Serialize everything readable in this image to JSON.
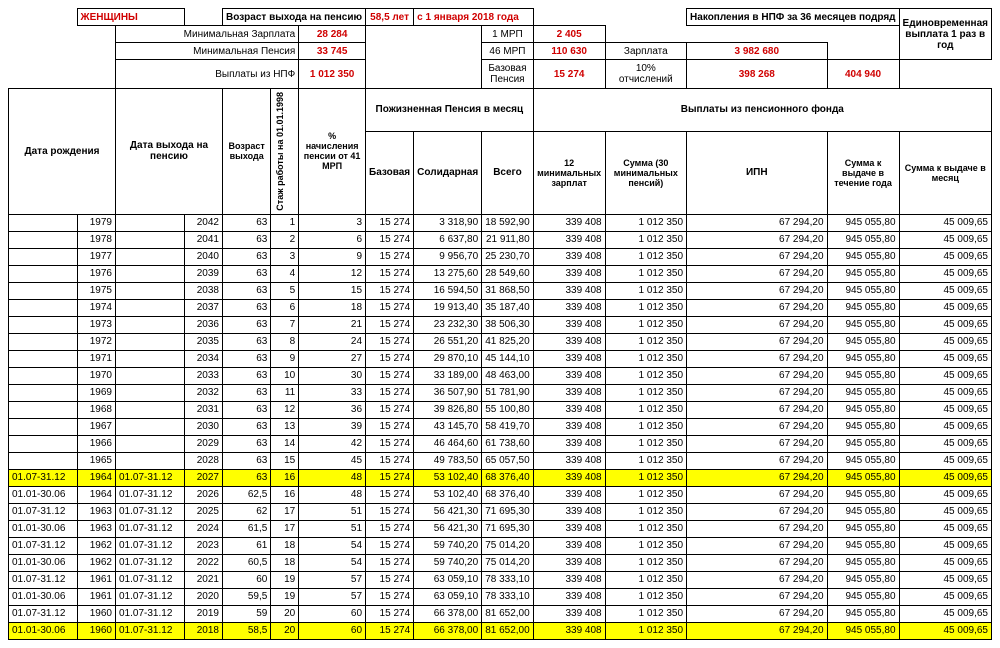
{
  "hdr": {
    "women": "ЖЕНЩИНЫ",
    "ageLbl": "Возраст выхода на пенсию",
    "age": "58,5  лет",
    "from": "с 1 января 2018 года",
    "npfLbl": "Накопления в НПФ за 36 месяцев подряд",
    "lumpLbl": "Единовременная выплата 1 раз в год",
    "minSalLbl": "Минимальная  Зарплата",
    "minSal": "28 284",
    "minPenLbl": "Минимальная  Пенсия",
    "minPen": "33 745",
    "mrp1Lbl": "1 МРП",
    "mrp1": "2 405",
    "mrp46Lbl": "46 МРП",
    "mrp46": "110 630",
    "salLbl": "Зарплата",
    "sal": "3 982 680",
    "npfPayLbl": "Выплаты из НПФ",
    "npfPay": "1 012 350",
    "basePenLbl": "Базовая Пенсия",
    "basePen": "15 274",
    "dedLbl": "10% отчислений",
    "ded": "398 268",
    "lump": "404 940"
  },
  "cols": {
    "dob": "Дата рождения",
    "ret": "Дата выхода на пенсию",
    "retAge": "Возраст выхода",
    "stazh": "Стаж работы на 01.01.1998",
    "pct": "% начисления пенсии от 41 МРП",
    "life": "Пожизненная Пенсия в месяц",
    "fund": "Выплаты из пенсионного фонда",
    "base": "Базовая",
    "sol": "Солидарная",
    "total": "Всего",
    "min12": "12 минимальных зарплат",
    "sum30": "Сумма (30 минимальных пенсий)",
    "ipn": "ИПН",
    "yr": "Сумма к выдаче в течение года",
    "mo": "Сумма к выдаче в месяц"
  },
  "rows": [
    {
      "p": "",
      "y": "1979",
      "rp": "",
      "ry": "2042",
      "a": "63",
      "s": "1",
      "pc": "3",
      "b": "15 274",
      "so": "3 318,90",
      "t": "18 592,90",
      "m": "339 408",
      "su": "1 012 350",
      "i": "67 294,20",
      "yr": "945 055,80",
      "mo": "45 009,65"
    },
    {
      "p": "",
      "y": "1978",
      "rp": "",
      "ry": "2041",
      "a": "63",
      "s": "2",
      "pc": "6",
      "b": "15 274",
      "so": "6 637,80",
      "t": "21 911,80",
      "m": "339 408",
      "su": "1 012 350",
      "i": "67 294,20",
      "yr": "945 055,80",
      "mo": "45 009,65"
    },
    {
      "p": "",
      "y": "1977",
      "rp": "",
      "ry": "2040",
      "a": "63",
      "s": "3",
      "pc": "9",
      "b": "15 274",
      "so": "9 956,70",
      "t": "25 230,70",
      "m": "339 408",
      "su": "1 012 350",
      "i": "67 294,20",
      "yr": "945 055,80",
      "mo": "45 009,65"
    },
    {
      "p": "",
      "y": "1976",
      "rp": "",
      "ry": "2039",
      "a": "63",
      "s": "4",
      "pc": "12",
      "b": "15 274",
      "so": "13 275,60",
      "t": "28 549,60",
      "m": "339 408",
      "su": "1 012 350",
      "i": "67 294,20",
      "yr": "945 055,80",
      "mo": "45 009,65"
    },
    {
      "p": "",
      "y": "1975",
      "rp": "",
      "ry": "2038",
      "a": "63",
      "s": "5",
      "pc": "15",
      "b": "15 274",
      "so": "16 594,50",
      "t": "31 868,50",
      "m": "339 408",
      "su": "1 012 350",
      "i": "67 294,20",
      "yr": "945 055,80",
      "mo": "45 009,65"
    },
    {
      "p": "",
      "y": "1974",
      "rp": "",
      "ry": "2037",
      "a": "63",
      "s": "6",
      "pc": "18",
      "b": "15 274",
      "so": "19 913,40",
      "t": "35 187,40",
      "m": "339 408",
      "su": "1 012 350",
      "i": "67 294,20",
      "yr": "945 055,80",
      "mo": "45 009,65"
    },
    {
      "p": "",
      "y": "1973",
      "rp": "",
      "ry": "2036",
      "a": "63",
      "s": "7",
      "pc": "21",
      "b": "15 274",
      "so": "23 232,30",
      "t": "38 506,30",
      "m": "339 408",
      "su": "1 012 350",
      "i": "67 294,20",
      "yr": "945 055,80",
      "mo": "45 009,65"
    },
    {
      "p": "",
      "y": "1972",
      "rp": "",
      "ry": "2035",
      "a": "63",
      "s": "8",
      "pc": "24",
      "b": "15 274",
      "so": "26 551,20",
      "t": "41 825,20",
      "m": "339 408",
      "su": "1 012 350",
      "i": "67 294,20",
      "yr": "945 055,80",
      "mo": "45 009,65"
    },
    {
      "p": "",
      "y": "1971",
      "rp": "",
      "ry": "2034",
      "a": "63",
      "s": "9",
      "pc": "27",
      "b": "15 274",
      "so": "29 870,10",
      "t": "45 144,10",
      "m": "339 408",
      "su": "1 012 350",
      "i": "67 294,20",
      "yr": "945 055,80",
      "mo": "45 009,65"
    },
    {
      "p": "",
      "y": "1970",
      "rp": "",
      "ry": "2033",
      "a": "63",
      "s": "10",
      "pc": "30",
      "b": "15 274",
      "so": "33 189,00",
      "t": "48 463,00",
      "m": "339 408",
      "su": "1 012 350",
      "i": "67 294,20",
      "yr": "945 055,80",
      "mo": "45 009,65"
    },
    {
      "p": "",
      "y": "1969",
      "rp": "",
      "ry": "2032",
      "a": "63",
      "s": "11",
      "pc": "33",
      "b": "15 274",
      "so": "36 507,90",
      "t": "51 781,90",
      "m": "339 408",
      "su": "1 012 350",
      "i": "67 294,20",
      "yr": "945 055,80",
      "mo": "45 009,65"
    },
    {
      "p": "",
      "y": "1968",
      "rp": "",
      "ry": "2031",
      "a": "63",
      "s": "12",
      "pc": "36",
      "b": "15 274",
      "so": "39 826,80",
      "t": "55 100,80",
      "m": "339 408",
      "su": "1 012 350",
      "i": "67 294,20",
      "yr": "945 055,80",
      "mo": "45 009,65"
    },
    {
      "p": "",
      "y": "1967",
      "rp": "",
      "ry": "2030",
      "a": "63",
      "s": "13",
      "pc": "39",
      "b": "15 274",
      "so": "43 145,70",
      "t": "58 419,70",
      "m": "339 408",
      "su": "1 012 350",
      "i": "67 294,20",
      "yr": "945 055,80",
      "mo": "45 009,65"
    },
    {
      "p": "",
      "y": "1966",
      "rp": "",
      "ry": "2029",
      "a": "63",
      "s": "14",
      "pc": "42",
      "b": "15 274",
      "so": "46 464,60",
      "t": "61 738,60",
      "m": "339 408",
      "su": "1 012 350",
      "i": "67 294,20",
      "yr": "945 055,80",
      "mo": "45 009,65"
    },
    {
      "p": "",
      "y": "1965",
      "rp": "",
      "ry": "2028",
      "a": "63",
      "s": "15",
      "pc": "45",
      "b": "15 274",
      "so": "49 783,50",
      "t": "65 057,50",
      "m": "339 408",
      "su": "1 012 350",
      "i": "67 294,20",
      "yr": "945 055,80",
      "mo": "45 009,65"
    },
    {
      "hl": 1,
      "p": "01.07-31.12",
      "y": "1964",
      "rp": "01.07-31.12",
      "ry": "2027",
      "a": "63",
      "s": "16",
      "pc": "48",
      "b": "15 274",
      "so": "53 102,40",
      "t": "68 376,40",
      "m": "339 408",
      "su": "1 012 350",
      "i": "67 294,20",
      "yr": "945 055,80",
      "mo": "45 009,65"
    },
    {
      "p": "01.01-30.06",
      "y": "1964",
      "rp": "01.07-31.12",
      "ry": "2026",
      "a": "62,5",
      "s": "16",
      "pc": "48",
      "b": "15 274",
      "so": "53 102,40",
      "t": "68 376,40",
      "m": "339 408",
      "su": "1 012 350",
      "i": "67 294,20",
      "yr": "945 055,80",
      "mo": "45 009,65"
    },
    {
      "p": "01.07-31.12",
      "y": "1963",
      "rp": "01.07-31.12",
      "ry": "2025",
      "a": "62",
      "s": "17",
      "pc": "51",
      "b": "15 274",
      "so": "56 421,30",
      "t": "71 695,30",
      "m": "339 408",
      "su": "1 012 350",
      "i": "67 294,20",
      "yr": "945 055,80",
      "mo": "45 009,65"
    },
    {
      "p": "01.01-30.06",
      "y": "1963",
      "rp": "01.07-31.12",
      "ry": "2024",
      "a": "61,5",
      "s": "17",
      "pc": "51",
      "b": "15 274",
      "so": "56 421,30",
      "t": "71 695,30",
      "m": "339 408",
      "su": "1 012 350",
      "i": "67 294,20",
      "yr": "945 055,80",
      "mo": "45 009,65"
    },
    {
      "p": "01.07-31.12",
      "y": "1962",
      "rp": "01.07-31.12",
      "ry": "2023",
      "a": "61",
      "s": "18",
      "pc": "54",
      "b": "15 274",
      "so": "59 740,20",
      "t": "75 014,20",
      "m": "339 408",
      "su": "1 012 350",
      "i": "67 294,20",
      "yr": "945 055,80",
      "mo": "45 009,65"
    },
    {
      "p": "01.01-30.06",
      "y": "1962",
      "rp": "01.07-31.12",
      "ry": "2022",
      "a": "60,5",
      "s": "18",
      "pc": "54",
      "b": "15 274",
      "so": "59 740,20",
      "t": "75 014,20",
      "m": "339 408",
      "su": "1 012 350",
      "i": "67 294,20",
      "yr": "945 055,80",
      "mo": "45 009,65"
    },
    {
      "p": "01.07-31.12",
      "y": "1961",
      "rp": "01.07-31.12",
      "ry": "2021",
      "a": "60",
      "s": "19",
      "pc": "57",
      "b": "15 274",
      "so": "63 059,10",
      "t": "78 333,10",
      "m": "339 408",
      "su": "1 012 350",
      "i": "67 294,20",
      "yr": "945 055,80",
      "mo": "45 009,65"
    },
    {
      "p": "01.01-30.06",
      "y": "1961",
      "rp": "01.07-31.12",
      "ry": "2020",
      "a": "59,5",
      "s": "19",
      "pc": "57",
      "b": "15 274",
      "so": "63 059,10",
      "t": "78 333,10",
      "m": "339 408",
      "su": "1 012 350",
      "i": "67 294,20",
      "yr": "945 055,80",
      "mo": "45 009,65"
    },
    {
      "p": "01.07-31.12",
      "y": "1960",
      "rp": "01.07-31.12",
      "ry": "2019",
      "a": "59",
      "s": "20",
      "pc": "60",
      "b": "15 274",
      "so": "66 378,00",
      "t": "81 652,00",
      "m": "339 408",
      "su": "1 012 350",
      "i": "67 294,20",
      "yr": "945 055,80",
      "mo": "45 009,65"
    },
    {
      "hl": 1,
      "p": "01.01-30.06",
      "y": "1960",
      "rp": "01.07-31.12",
      "ry": "2018",
      "a": "58,5",
      "s": "20",
      "pc": "60",
      "b": "15 274",
      "so": "66 378,00",
      "t": "81 652,00",
      "m": "339 408",
      "su": "1 012 350",
      "i": "67 294,20",
      "yr": "945 055,80",
      "mo": "45 009,65"
    }
  ]
}
